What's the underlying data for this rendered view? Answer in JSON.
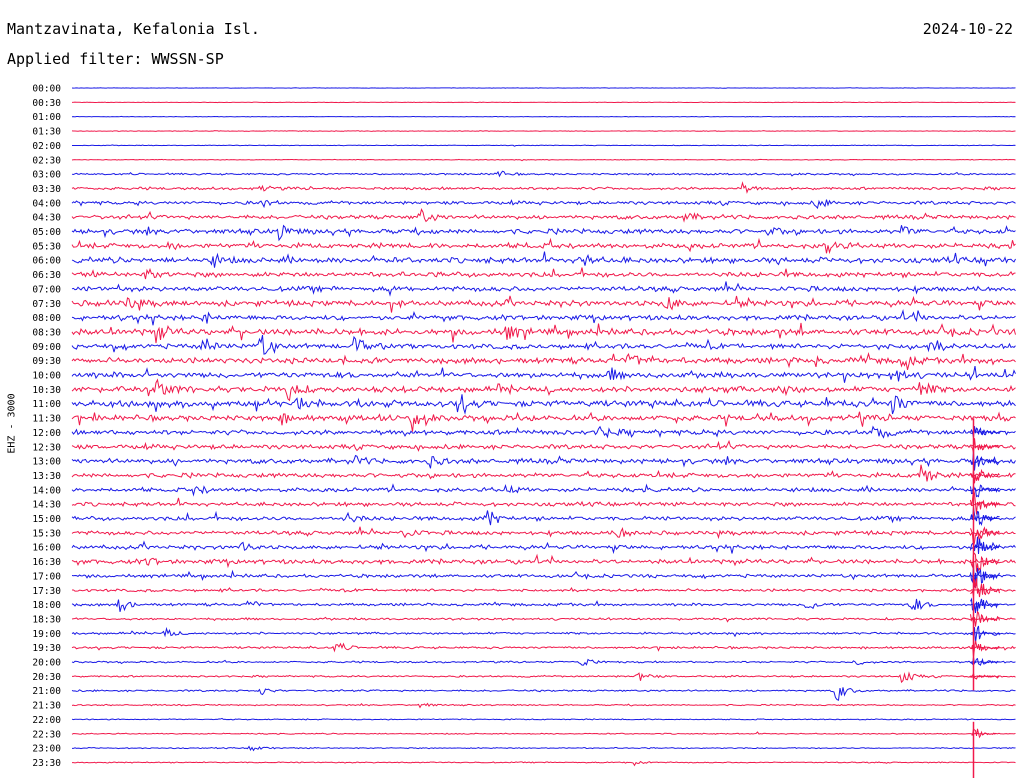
{
  "header": {
    "station": "Mantzavinata, Kefalonia Isl.",
    "date": "2024-10-22",
    "filter": "Applied filter: WWSSN-SP"
  },
  "channel_label": "EHZ - 3000",
  "chart_data": {
    "type": "line",
    "title": "Mantzavinata, Kefalonia Isl.",
    "subtitle": "Applied filter: WWSSN-SP",
    "ylabel": "EHZ - 3000",
    "grid": false,
    "row_labels": [
      "00:00",
      "00:30",
      "01:00",
      "01:30",
      "02:00",
      "02:30",
      "03:00",
      "03:30",
      "04:00",
      "04:30",
      "05:00",
      "05:30",
      "06:00",
      "06:30",
      "07:00",
      "07:30",
      "08:00",
      "08:30",
      "09:00",
      "09:30",
      "10:00",
      "10:30",
      "11:00",
      "11:30",
      "12:00",
      "12:30",
      "13:00",
      "13:30",
      "14:00",
      "14:30",
      "15:00",
      "15:30",
      "16:00",
      "16:30",
      "17:00",
      "17:30",
      "18:00",
      "18:30",
      "19:00",
      "19:30",
      "20:00",
      "20:30",
      "21:00",
      "21:30",
      "22:00",
      "22:30",
      "23:00",
      "23:30"
    ],
    "colors": [
      "#1a1ae6",
      "#f0194b"
    ],
    "row_noise": [
      0.2,
      0.2,
      0.2,
      0.3,
      0.3,
      0.3,
      0.8,
      1.2,
      1.5,
      1.8,
      2.2,
      2.2,
      2.5,
      2.2,
      2.2,
      2.5,
      2.2,
      2.8,
      2.2,
      2.5,
      2.5,
      2.5,
      2.8,
      2.5,
      2.2,
      2.0,
      2.2,
      2.0,
      1.8,
      1.8,
      1.8,
      1.8,
      1.8,
      2.0,
      1.5,
      1.2,
      1.2,
      1.0,
      1.0,
      1.0,
      0.8,
      0.8,
      0.8,
      0.6,
      0.5,
      0.5,
      0.5,
      0.5
    ],
    "events": [
      {
        "row": 6,
        "t": 0.45,
        "amp": 4
      },
      {
        "row": 7,
        "t": 0.71,
        "amp": 5
      },
      {
        "row": 7,
        "t": 0.2,
        "amp": 3
      },
      {
        "row": 8,
        "t": 0.2,
        "amp": 5
      },
      {
        "row": 8,
        "t": 0.79,
        "amp": 6
      },
      {
        "row": 9,
        "t": 0.37,
        "amp": 8
      },
      {
        "row": 9,
        "t": 0.65,
        "amp": 5
      },
      {
        "row": 10,
        "t": 0.22,
        "amp": 8
      },
      {
        "row": 10,
        "t": 0.74,
        "amp": 5
      },
      {
        "row": 10,
        "t": 0.88,
        "amp": 6
      },
      {
        "row": 11,
        "t": 0.8,
        "amp": 9
      },
      {
        "row": 11,
        "t": 0.1,
        "amp": 4
      },
      {
        "row": 12,
        "t": 0.15,
        "amp": 6
      },
      {
        "row": 12,
        "t": 0.54,
        "amp": 7
      },
      {
        "row": 13,
        "t": 0.08,
        "amp": 5
      },
      {
        "row": 15,
        "t": 0.06,
        "amp": 6
      },
      {
        "row": 15,
        "t": 0.63,
        "amp": 9
      },
      {
        "row": 16,
        "t": 0.14,
        "amp": 5
      },
      {
        "row": 16,
        "t": 0.89,
        "amp": 4
      },
      {
        "row": 17,
        "t": 0.09,
        "amp": 10
      },
      {
        "row": 17,
        "t": 0.46,
        "amp": 9
      },
      {
        "row": 18,
        "t": 0.2,
        "amp": 12
      },
      {
        "row": 18,
        "t": 0.14,
        "amp": 9
      },
      {
        "row": 18,
        "t": 0.3,
        "amp": 10
      },
      {
        "row": 18,
        "t": 0.91,
        "amp": 8
      },
      {
        "row": 19,
        "t": 0.59,
        "amp": 9
      },
      {
        "row": 19,
        "t": 0.88,
        "amp": 7
      },
      {
        "row": 20,
        "t": 0.87,
        "amp": 10
      },
      {
        "row": 20,
        "t": 0.57,
        "amp": 6
      },
      {
        "row": 21,
        "t": 0.09,
        "amp": 11
      },
      {
        "row": 21,
        "t": 0.23,
        "amp": 12
      },
      {
        "row": 21,
        "t": 0.75,
        "amp": 7
      },
      {
        "row": 21,
        "t": 0.9,
        "amp": 11
      },
      {
        "row": 22,
        "t": 0.41,
        "amp": 12
      },
      {
        "row": 22,
        "t": 0.24,
        "amp": 7
      },
      {
        "row": 22,
        "t": 0.87,
        "amp": 12
      },
      {
        "row": 23,
        "t": 0.36,
        "amp": 13
      },
      {
        "row": 23,
        "t": 0.22,
        "amp": 6
      },
      {
        "row": 24,
        "t": 0.56,
        "amp": 6
      },
      {
        "row": 24,
        "t": 0.85,
        "amp": 10
      },
      {
        "row": 26,
        "t": 0.3,
        "amp": 5
      },
      {
        "row": 26,
        "t": 0.38,
        "amp": 6
      },
      {
        "row": 27,
        "t": 0.9,
        "amp": 14
      },
      {
        "row": 28,
        "t": 0.13,
        "amp": 6
      },
      {
        "row": 28,
        "t": 0.46,
        "amp": 5
      },
      {
        "row": 30,
        "t": 0.44,
        "amp": 10
      },
      {
        "row": 30,
        "t": 0.29,
        "amp": 6
      },
      {
        "row": 31,
        "t": 0.35,
        "amp": 7
      },
      {
        "row": 31,
        "t": 0.58,
        "amp": 6
      },
      {
        "row": 32,
        "t": 0.18,
        "amp": 5
      },
      {
        "row": 33,
        "t": 0.08,
        "amp": 4
      },
      {
        "row": 36,
        "t": 0.05,
        "amp": 9
      },
      {
        "row": 36,
        "t": 0.78,
        "amp": 7
      },
      {
        "row": 36,
        "t": 0.89,
        "amp": 9
      },
      {
        "row": 36,
        "t": 0.19,
        "amp": 4
      },
      {
        "row": 38,
        "t": 0.1,
        "amp": 4
      },
      {
        "row": 39,
        "t": 0.28,
        "amp": 6
      },
      {
        "row": 40,
        "t": 0.54,
        "amp": 6
      },
      {
        "row": 40,
        "t": 0.83,
        "amp": 4
      },
      {
        "row": 41,
        "t": 0.6,
        "amp": 6
      },
      {
        "row": 41,
        "t": 0.88,
        "amp": 9
      },
      {
        "row": 42,
        "t": 0.81,
        "amp": 12
      },
      {
        "row": 42,
        "t": 0.2,
        "amp": 4
      },
      {
        "row": 43,
        "t": 0.37,
        "amp": 3
      },
      {
        "row": 46,
        "t": 0.19,
        "amp": 4
      },
      {
        "row": 47,
        "t": 0.59,
        "amp": 6
      }
    ],
    "quake": {
      "t": 0.955,
      "start_row": 24,
      "peak_row": 35,
      "end_row": 41,
      "aftershock_row": 45
    }
  }
}
